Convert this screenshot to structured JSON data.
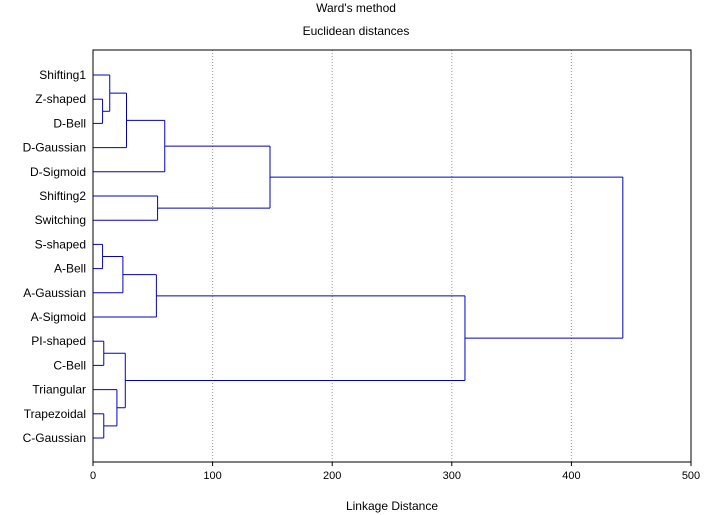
{
  "chart_data": {
    "type": "dendrogram",
    "title": "Ward's method",
    "subtitle": "Euclidean distances",
    "xlabel": "Linkage Distance",
    "xlim": [
      0,
      500
    ],
    "xticks": [
      0,
      100,
      200,
      300,
      400,
      500
    ],
    "grid": "vertical dotted",
    "line_color": "#0000cc",
    "leaves": [
      "Shifting1",
      "Z-shaped",
      "D-Bell",
      "D-Gaussian",
      "D-Sigmoid",
      "Shifting2",
      "Switching",
      "S-shaped",
      "A-Bell",
      "A-Gaussian",
      "A-Sigmoid",
      "PI-shaped",
      "C-Bell",
      "Triangular",
      "Trapezoidal",
      "C-Gaussian"
    ],
    "merges": [
      {
        "id": "m1",
        "children": [
          "Z-shaped",
          "D-Bell"
        ],
        "distance": 8
      },
      {
        "id": "m2",
        "children": [
          "Shifting1",
          "m1"
        ],
        "distance": 14
      },
      {
        "id": "m3",
        "children": [
          "m2",
          "D-Gaussian"
        ],
        "distance": 28
      },
      {
        "id": "m4",
        "children": [
          "m3",
          "D-Sigmoid"
        ],
        "distance": 60
      },
      {
        "id": "m5",
        "children": [
          "Shifting2",
          "Switching"
        ],
        "distance": 54
      },
      {
        "id": "m6",
        "children": [
          "m4",
          "m5"
        ],
        "distance": 148
      },
      {
        "id": "m7",
        "children": [
          "S-shaped",
          "A-Bell"
        ],
        "distance": 8
      },
      {
        "id": "m8",
        "children": [
          "m7",
          "A-Gaussian"
        ],
        "distance": 25
      },
      {
        "id": "m9",
        "children": [
          "m8",
          "A-Sigmoid"
        ],
        "distance": 53
      },
      {
        "id": "m10",
        "children": [
          "PI-shaped",
          "C-Bell"
        ],
        "distance": 9
      },
      {
        "id": "m11",
        "children": [
          "Trapezoidal",
          "C-Gaussian"
        ],
        "distance": 9
      },
      {
        "id": "m12",
        "children": [
          "Triangular",
          "m11"
        ],
        "distance": 20
      },
      {
        "id": "m13",
        "children": [
          "m10",
          "m12"
        ],
        "distance": 27
      },
      {
        "id": "m14",
        "children": [
          "m9",
          "m13"
        ],
        "distance": 311
      },
      {
        "id": "m15",
        "children": [
          "m6",
          "m14"
        ],
        "distance": 443
      }
    ]
  }
}
